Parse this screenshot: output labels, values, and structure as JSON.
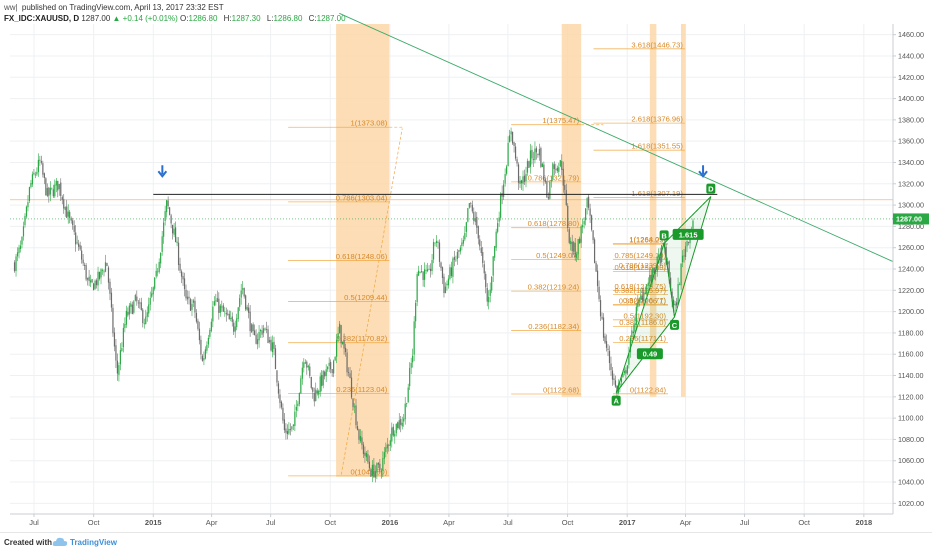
{
  "header": {
    "user": "ww|",
    "published": "published on TradingView.com, April 13, 2017 23:32 EST",
    "symbol": "FX_IDC:XAUUSD, D",
    "last": "1287.00",
    "change": "▲ +0.14 (+0.01%)",
    "o_label": "O:",
    "o_value": "1286.80",
    "h_label": "H:",
    "h_value": "1287.30",
    "l_label": "L:",
    "l_value": "1286.80",
    "c_label": "C:",
    "c_value": "1287.00"
  },
  "footer": {
    "created": "Created with",
    "brand": "TradingView",
    "logo_icon": "tradingview-cloud-icon"
  },
  "colors": {
    "up": "#2aa844",
    "down": "#6b6b6b",
    "fib": "#f0a030",
    "zone": "#fbd7a8",
    "trend": "#3caa6a",
    "pattern": "#1a9a2a",
    "arrow": "#2b6fd1",
    "price_tag": "#2aa844"
  },
  "chart_data": {
    "type": "candlestick",
    "symbol": "FX_IDC:XAUUSD",
    "interval": "D",
    "y_axis": {
      "range": [
        1010,
        1470
      ],
      "ticks": [
        1460,
        1440,
        1420,
        1400,
        1380,
        1360,
        1340,
        1320,
        1300,
        1280,
        1260,
        1240,
        1220,
        1200,
        1180,
        1160,
        1140,
        1120,
        1100,
        1080,
        1060,
        1040,
        1020
      ],
      "tick_labels": [
        "1460.00",
        "1440.00",
        "1420.00",
        "1400.00",
        "1380.00",
        "1360.00",
        "1340.00",
        "1320.00",
        "1300.00",
        "1280.00",
        "1260.00",
        "1240.00",
        "1220.00",
        "1200.00",
        "1180.00",
        "1160.00",
        "1140.00",
        "1120.00",
        "1100.00",
        "1080.00",
        "1060.00",
        "1040.00",
        "1020.00"
      ]
    },
    "x_axis": {
      "range": [
        "2014-05-25",
        "2018-02-15"
      ],
      "ticks": [
        {
          "label": "Jul",
          "date": "2014-07-01",
          "bold": false
        },
        {
          "label": "Oct",
          "date": "2014-10-01",
          "bold": false
        },
        {
          "label": "2015",
          "date": "2015-01-01",
          "bold": true
        },
        {
          "label": "Apr",
          "date": "2015-04-01",
          "bold": false
        },
        {
          "label": "Jul",
          "date": "2015-07-01",
          "bold": false
        },
        {
          "label": "Oct",
          "date": "2015-10-01",
          "bold": false
        },
        {
          "label": "2016",
          "date": "2016-01-01",
          "bold": true
        },
        {
          "label": "Apr",
          "date": "2016-04-01",
          "bold": false
        },
        {
          "label": "Jul",
          "date": "2016-07-01",
          "bold": false
        },
        {
          "label": "Oct",
          "date": "2016-10-01",
          "bold": false
        },
        {
          "label": "2017",
          "date": "2017-01-01",
          "bold": true
        },
        {
          "label": "Apr",
          "date": "2017-04-01",
          "bold": false
        },
        {
          "label": "Jul",
          "date": "2017-07-01",
          "bold": false
        },
        {
          "label": "Oct",
          "date": "2017-10-01",
          "bold": false
        },
        {
          "label": "2018",
          "date": "2018-01-01",
          "bold": true
        }
      ]
    },
    "grid": true,
    "last_price": {
      "value": 1287.0,
      "label": "1287.00"
    },
    "price_path": [
      [
        "2014-06-01",
        1245
      ],
      [
        "2014-06-12",
        1262
      ],
      [
        "2014-06-25",
        1318
      ],
      [
        "2014-07-10",
        1340
      ],
      [
        "2014-07-22",
        1308
      ],
      [
        "2014-08-08",
        1320
      ],
      [
        "2014-08-22",
        1290
      ],
      [
        "2014-09-10",
        1255
      ],
      [
        "2014-09-25",
        1222
      ],
      [
        "2014-10-10",
        1232
      ],
      [
        "2014-10-21",
        1248
      ],
      [
        "2014-11-06",
        1140
      ],
      [
        "2014-11-20",
        1195
      ],
      [
        "2014-12-05",
        1210
      ],
      [
        "2014-12-20",
        1190
      ],
      [
        "2015-01-05",
        1230
      ],
      [
        "2015-01-22",
        1302
      ],
      [
        "2015-02-05",
        1265
      ],
      [
        "2015-02-20",
        1210
      ],
      [
        "2015-03-05",
        1205
      ],
      [
        "2015-03-18",
        1152
      ],
      [
        "2015-04-05",
        1210
      ],
      [
        "2015-04-20",
        1198
      ],
      [
        "2015-05-05",
        1185
      ],
      [
        "2015-05-18",
        1225
      ],
      [
        "2015-06-05",
        1172
      ],
      [
        "2015-06-20",
        1185
      ],
      [
        "2015-07-05",
        1165
      ],
      [
        "2015-07-22",
        1088
      ],
      [
        "2015-08-05",
        1090
      ],
      [
        "2015-08-22",
        1162
      ],
      [
        "2015-09-05",
        1120
      ],
      [
        "2015-09-20",
        1138
      ],
      [
        "2015-10-05",
        1150
      ],
      [
        "2015-10-15",
        1184
      ],
      [
        "2015-10-30",
        1140
      ],
      [
        "2015-11-15",
        1080
      ],
      [
        "2015-12-03",
        1050
      ],
      [
        "2015-12-17",
        1052
      ],
      [
        "2016-01-05",
        1090
      ],
      [
        "2016-01-22",
        1100
      ],
      [
        "2016-02-05",
        1160
      ],
      [
        "2016-02-12",
        1240
      ],
      [
        "2016-03-01",
        1232
      ],
      [
        "2016-03-12",
        1272
      ],
      [
        "2016-03-25",
        1220
      ],
      [
        "2016-04-10",
        1248
      ],
      [
        "2016-04-25",
        1265
      ],
      [
        "2016-05-02",
        1302
      ],
      [
        "2016-05-16",
        1275
      ],
      [
        "2016-05-31",
        1205
      ],
      [
        "2016-06-15",
        1285
      ],
      [
        "2016-06-24",
        1322
      ],
      [
        "2016-07-06",
        1372
      ],
      [
        "2016-07-20",
        1315
      ],
      [
        "2016-08-05",
        1345
      ],
      [
        "2016-08-18",
        1352
      ],
      [
        "2016-08-31",
        1308
      ],
      [
        "2016-09-09",
        1338
      ],
      [
        "2016-09-22",
        1338
      ],
      [
        "2016-10-04",
        1265
      ],
      [
        "2016-10-14",
        1255
      ],
      [
        "2016-11-01",
        1302
      ],
      [
        "2016-11-10",
        1258
      ],
      [
        "2016-11-25",
        1180
      ],
      [
        "2016-12-15",
        1125
      ],
      [
        "2016-12-28",
        1140
      ],
      [
        "2017-01-15",
        1200
      ],
      [
        "2017-01-25",
        1218
      ],
      [
        "2017-02-10",
        1235
      ],
      [
        "2017-02-27",
        1262
      ],
      [
        "2017-03-15",
        1198
      ],
      [
        "2017-03-28",
        1253
      ],
      [
        "2017-04-13",
        1287
      ]
    ],
    "resistance_line": {
      "y": 1310,
      "from": "2015-01-01",
      "to": "2017-05-20",
      "color": "#222222"
    },
    "trendline": {
      "from": [
        "2015-10-15",
        1480
      ],
      "to": [
        "2018-02-15",
        1247
      ],
      "color": "#3caa6a"
    },
    "reference_line": {
      "y": 1305,
      "from": "2014-05-25",
      "to": "2018-02-15",
      "color": "#f0a030"
    },
    "arrows": [
      {
        "date": "2015-01-15",
        "y": 1328,
        "icon": "down-arrow-icon"
      },
      {
        "date": "2017-04-28",
        "y": 1328,
        "icon": "down-arrow-icon"
      }
    ],
    "zones": [
      {
        "from": "2015-10-10",
        "to": "2015-12-31",
        "y_top": 1470,
        "y_bottom": 1045
      },
      {
        "from": "2016-09-22",
        "to": "2016-10-22",
        "y_top": 1470,
        "y_bottom": 1120
      },
      {
        "from": "2017-02-05",
        "to": "2017-02-15",
        "y_top": 1470,
        "y_bottom": 1120
      },
      {
        "from": "2017-03-25",
        "to": "2017-04-01",
        "y_top": 1470,
        "y_bottom": 1120
      }
    ],
    "fib_retracements": [
      {
        "name": "fib-2015",
        "from": "2015-07-28",
        "to": "2015-12-31",
        "dash_to": "2016-01-20",
        "levels": [
          {
            "label": "1(1373.08)",
            "y": 1373.08
          },
          {
            "label": "0.786(1303.04)",
            "y": 1303.04
          },
          {
            "label": "0.618(1248.06)",
            "y": 1248.06
          },
          {
            "label": "0.5(1209.44)",
            "y": 1209.44
          },
          {
            "label": "0.382(1170.82)",
            "y": 1170.82
          },
          {
            "label": "0.236(1123.04)",
            "y": 1123.04
          },
          {
            "label": "0(1045.80)",
            "y": 1045.8
          }
        ],
        "diagonal": {
          "from": [
            "2015-10-18",
            1047
          ],
          "to": [
            "2016-01-20",
            1372
          ]
        }
      },
      {
        "name": "fib-2016",
        "from": "2016-07-06",
        "to": "2016-10-22",
        "dash_to": "2016-11-25",
        "levels": [
          {
            "label": "1(1375.47)",
            "y": 1375.47
          },
          {
            "label": "0.786(1321.79)",
            "y": 1321.79
          },
          {
            "label": "0.618(1278.80)",
            "y": 1278.8
          },
          {
            "label": "0.5(1249.07)",
            "y": 1249.07
          },
          {
            "label": "0.382(1219.24)",
            "y": 1219.24
          },
          {
            "label": "0.236(1182.34)",
            "y": 1182.34
          },
          {
            "label": "0(1122.68)",
            "y": 1122.68
          }
        ]
      },
      {
        "name": "fib-extension",
        "from": "2016-11-10",
        "to": "2017-03-31",
        "levels": [
          {
            "label": "3.618(1446.73)",
            "y": 1446.73
          },
          {
            "label": "2.618(1376.96)",
            "y": 1376.96
          },
          {
            "label": "1.618(1351.55)",
            "y": 1351.55
          },
          {
            "label": "1.618(1307.19)",
            "y": 1307.19
          }
        ]
      },
      {
        "name": "fib-2017",
        "from": "2016-12-10",
        "to": "2017-03-05",
        "levels": [
          {
            "label": "1(1263.25)",
            "y": 1263.25
          },
          {
            "label": "1(1264.07)",
            "y": 1264.07
          },
          {
            "label": "0.785(1249.10)",
            "y": 1249.1
          },
          {
            "label": "0.786(1239.5)",
            "y": 1239.5
          },
          {
            "label": "0.618(1237.80)",
            "y": 1237.8
          },
          {
            "label": "0.618(1219.75)",
            "y": 1219.75
          },
          {
            "label": "0.382(1215.97)",
            "y": 1215.97
          },
          {
            "label": "0.5(1206.77)",
            "y": 1206.77
          },
          {
            "label": "0.382(1206.1)",
            "y": 1206.1
          },
          {
            "label": "0.5(1192.30)",
            "y": 1192.3
          },
          {
            "label": "0.382(1186.0)",
            "y": 1186.0
          },
          {
            "label": "0.236(1171.1)",
            "y": 1171.1
          },
          {
            "label": "0(1122.84)",
            "y": 1122.84
          }
        ]
      }
    ],
    "pattern": {
      "points": [
        {
          "label": "A",
          "date": "2016-12-15",
          "y": 1124
        },
        {
          "label": "B",
          "date": "2017-02-27",
          "y": 1264
        },
        {
          "label": "C",
          "date": "2017-03-15",
          "y": 1195
        },
        {
          "label": "D",
          "date": "2017-05-10",
          "y": 1308
        }
      ],
      "ratios": [
        {
          "label": "0.49",
          "date": "2017-02-05",
          "y": 1160
        },
        {
          "label": "1.615",
          "date": "2017-04-05",
          "y": 1272
        }
      ]
    }
  }
}
